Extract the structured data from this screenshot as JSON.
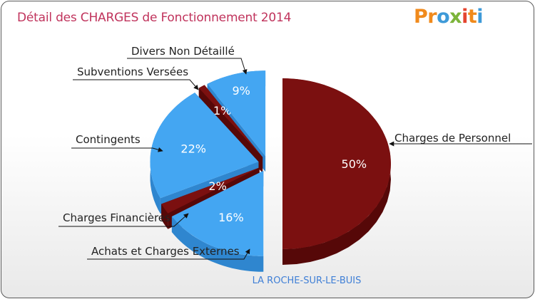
{
  "header": {
    "title": "Détail des CHARGES de Fonctionnement 2014",
    "logo_text": "Proxiti"
  },
  "footer": {
    "location": "LA ROCHE-SUR-LE-BUIS"
  },
  "colors": {
    "blue": "#44a6f2",
    "blue_dark": "#2f86cf",
    "red": "#7b1010",
    "red_dark": "#560808"
  },
  "chart_data": {
    "type": "pie",
    "style": "3d-exploded",
    "title": "Détail des CHARGES de Fonctionnement 2014",
    "slices": [
      {
        "label": "Charges de Personnel",
        "value": 50,
        "pct_label": "50%",
        "color": "red"
      },
      {
        "label": "Achats et Charges Externes",
        "value": 16,
        "pct_label": "16%",
        "color": "blue"
      },
      {
        "label": "Charges Financières",
        "value": 2,
        "pct_label": "2%",
        "color": "red"
      },
      {
        "label": "Contingents",
        "value": 22,
        "pct_label": "22%",
        "color": "blue"
      },
      {
        "label": "Subventions Versées",
        "value": 1,
        "pct_label": "1%",
        "color": "red"
      },
      {
        "label": "Divers Non Détaillé",
        "value": 9,
        "pct_label": "9%",
        "color": "blue"
      }
    ]
  }
}
